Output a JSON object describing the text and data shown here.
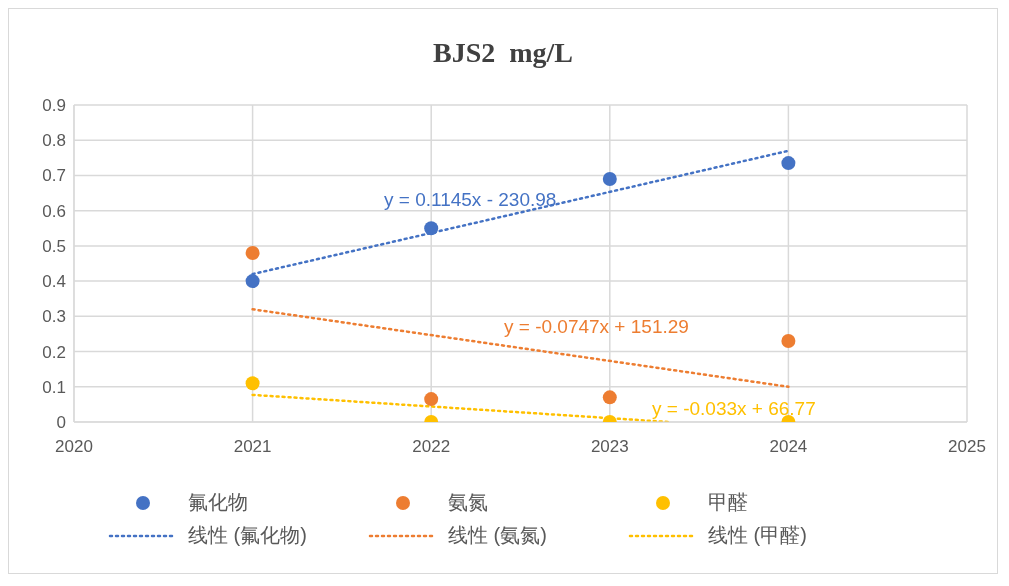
{
  "chart_data": {
    "type": "scatter",
    "title": "BJS2  mg/L",
    "x": [
      2021,
      2022,
      2023,
      2024
    ],
    "series": [
      {
        "name": "氟化物",
        "color": "#4472c4",
        "values": [
          0.4,
          0.55,
          0.69,
          0.735
        ]
      },
      {
        "name": "氨氮",
        "color": "#ed7d31",
        "values": [
          0.48,
          0.065,
          0.07,
          0.23
        ]
      },
      {
        "name": "甲醛",
        "color": "#ffc000",
        "values": [
          0.11,
          0,
          0,
          0
        ]
      },
      {
        "name": "线性 (氟化物)",
        "type": "line",
        "line_style": "dotted",
        "marker": "none",
        "color": "#4472c4",
        "x": [
          2021,
          2024
        ],
        "values": [
          0.42,
          0.77
        ]
      },
      {
        "name": "线性 (氨氮)",
        "type": "line",
        "line_style": "dotted",
        "marker": "none",
        "color": "#ed7d31",
        "x": [
          2021,
          2024
        ],
        "values": [
          0.32,
          0.1
        ]
      },
      {
        "name": "线性 (甲醛)",
        "type": "line",
        "line_style": "dotted",
        "marker": "none",
        "color": "#ffc000",
        "x": [
          2021,
          2023.33
        ],
        "values": [
          0.077,
          0
        ]
      }
    ],
    "annotations": [
      "y = 0.1145x - 230.98",
      "y = -0.0747x + 151.29",
      "y = -0.033x + 66.77"
    ],
    "xlim": [
      2020,
      2025
    ],
    "xticks": [
      2020,
      2021,
      2022,
      2023,
      2024,
      2025
    ],
    "ylim": [
      0,
      0.9
    ],
    "yticks": [
      0,
      0.1,
      0.2,
      0.3,
      0.4,
      0.5,
      0.6,
      0.7,
      0.8,
      0.9
    ],
    "grid": true,
    "legend": "bottom",
    "marker": "circle"
  }
}
